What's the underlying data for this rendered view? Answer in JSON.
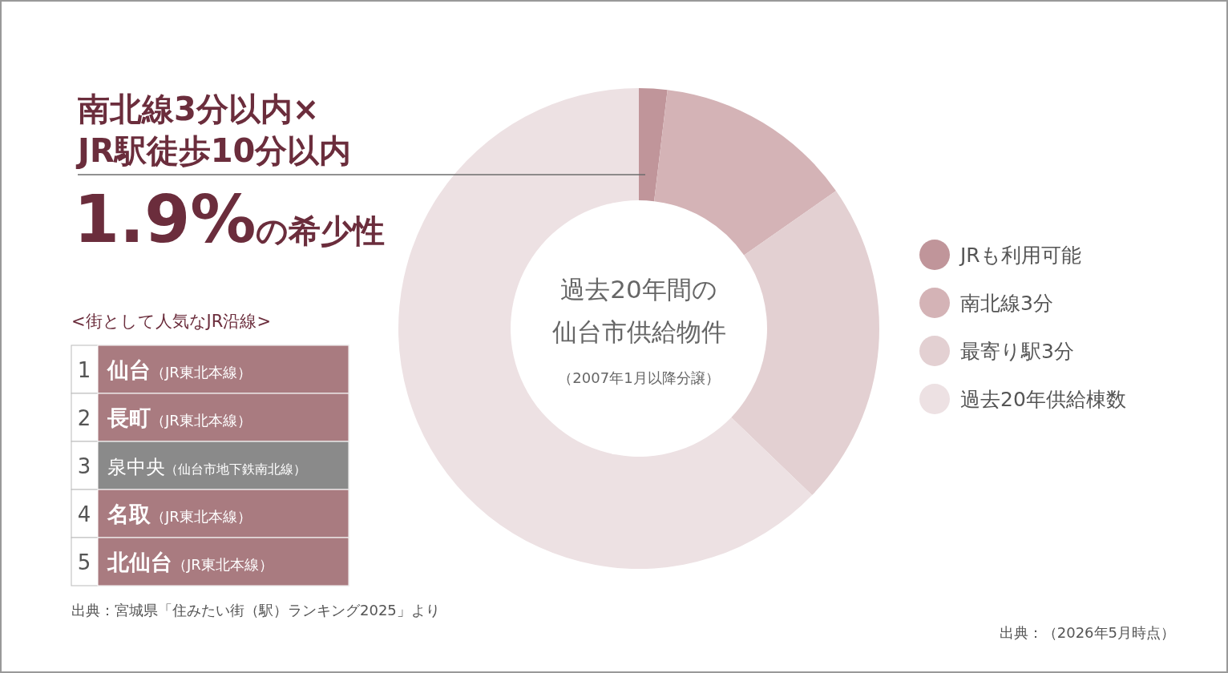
{
  "chart_data": {
    "type": "donut",
    "title": "南北線3分以内×JR駅徒歩10分以内",
    "subtitle": "1.9%の希少性",
    "categories": [
      "JRも利用可能",
      "南北線3分",
      "最寄り駅3分",
      "過去20年供給棟数"
    ],
    "values": [
      1.9,
      13.4,
      21.9,
      62.8
    ],
    "colors": [
      "#c0959a",
      "#d4b3b6",
      "#e3d0d2",
      "#ede1e3"
    ],
    "legend": "right",
    "annotations": [
      "過去20年間の",
      "仙台市供給物件",
      "（2007年1月以降分譲）",
      "<街として人気なJR沿線>",
      "1 仙台（JR東北本線）",
      "2 長町（JR東北本線）",
      "3 泉中央（仙台市地下鉄南北線）",
      "4 名取（JR東北本線）",
      "5 北仙台（JR東北本線）",
      "出典：宮城県「住みたい街（駅）ランキング2025」より",
      "出典：（2026年5月時点）"
    ]
  }
}
